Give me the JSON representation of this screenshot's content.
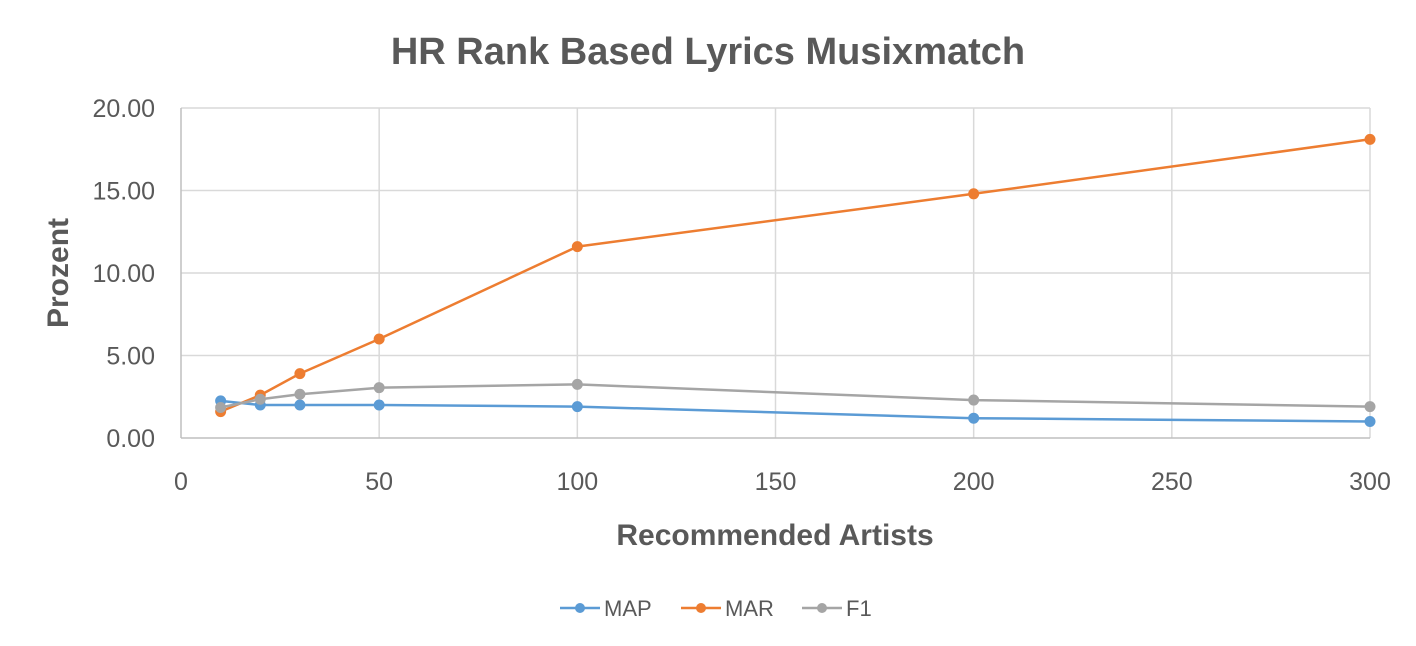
{
  "chart_data": {
    "type": "line",
    "title": "HR Rank Based Lyrics Musixmatch",
    "xlabel": "Recommended Artists",
    "ylabel": "Prozent",
    "x": [
      10,
      20,
      30,
      50,
      100,
      200,
      300
    ],
    "xlim": [
      0,
      300
    ],
    "ylim": [
      0,
      20
    ],
    "x_ticks": [
      "0",
      "50",
      "100",
      "150",
      "200",
      "250",
      "300"
    ],
    "x_tick_values": [
      0,
      50,
      100,
      150,
      200,
      250,
      300
    ],
    "y_ticks": [
      "0.00",
      "5.00",
      "10.00",
      "15.00",
      "20.00"
    ],
    "y_tick_values": [
      0,
      5,
      10,
      15,
      20
    ],
    "grid": true,
    "legend_position": "bottom",
    "series": [
      {
        "name": "MAP",
        "color": "#5b9bd5",
        "values": [
          2.25,
          2.0,
          2.0,
          2.0,
          1.9,
          1.2,
          1.0
        ]
      },
      {
        "name": "MAR",
        "color": "#ed7d31",
        "values": [
          1.6,
          2.6,
          3.9,
          6.0,
          11.6,
          14.8,
          18.1
        ]
      },
      {
        "name": "F1",
        "color": "#a5a5a5",
        "values": [
          1.85,
          2.35,
          2.65,
          3.05,
          3.25,
          2.3,
          1.9
        ]
      }
    ]
  }
}
